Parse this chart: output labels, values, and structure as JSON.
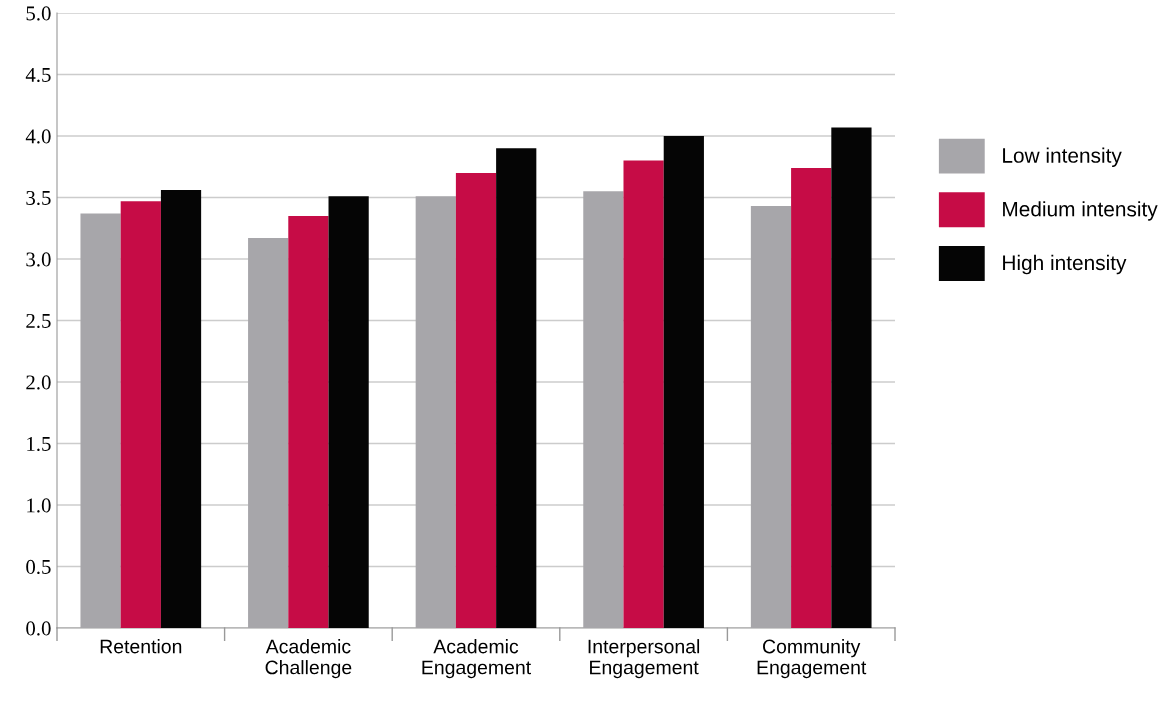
{
  "chart_data": {
    "type": "bar",
    "categories": [
      "Retention",
      "Academic\nChallenge",
      "Academic\nEngagement",
      "Interpersonal\nEngagement",
      "Community\nEngagement"
    ],
    "series": [
      {
        "name": "Low intensity",
        "color": "#a7a6aa",
        "values": [
          3.37,
          3.17,
          3.51,
          3.55,
          3.43
        ]
      },
      {
        "name": "Medium intensity",
        "color": "#c60c46",
        "values": [
          3.47,
          3.35,
          3.7,
          3.8,
          3.74
        ]
      },
      {
        "name": "High intensity",
        "color": "#050505",
        "values": [
          3.56,
          3.51,
          3.9,
          4.0,
          4.07
        ]
      }
    ],
    "ylim": [
      0,
      5
    ],
    "yticks": [
      {
        "value": 0,
        "label": "0.0"
      },
      {
        "value": 0.5,
        "label": "0.5"
      },
      {
        "value": 1,
        "label": "1.0"
      },
      {
        "value": 1.5,
        "label": "1.5"
      },
      {
        "value": 2,
        "label": "2.0"
      },
      {
        "value": 2.5,
        "label": "2.5"
      },
      {
        "value": 3,
        "label": "3.0"
      },
      {
        "value": 3.5,
        "label": "3.5"
      },
      {
        "value": 4,
        "label": "4.0"
      },
      {
        "value": 4.5,
        "label": "4.5"
      },
      {
        "value": 5,
        "label": "5.0"
      }
    ],
    "grid": "y",
    "legend": "right"
  }
}
